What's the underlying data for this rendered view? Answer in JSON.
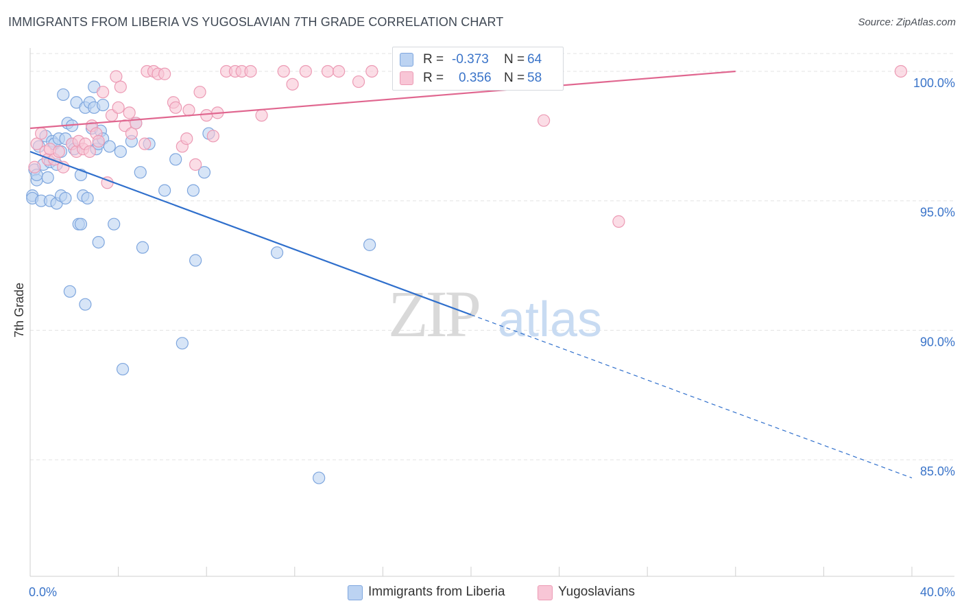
{
  "title": "IMMIGRANTS FROM LIBERIA VS YUGOSLAVIAN 7TH GRADE CORRELATION CHART",
  "source": "Source: ZipAtlas.com",
  "watermark": {
    "zip": "ZIP",
    "atlas": "atlas"
  },
  "legend": {
    "series": [
      {
        "r_label": "R =",
        "r_value": "-0.373",
        "n_label": "N =",
        "n_value": "64"
      },
      {
        "r_label": "R =",
        "r_value": "0.356",
        "n_label": "N =",
        "n_value": "58"
      }
    ]
  },
  "bottom_legend": [
    "Immigrants from Liberia",
    "Yugoslavians"
  ],
  "colors": {
    "blue_fill": "#bcd3f2",
    "blue_stroke": "#7ea6de",
    "blue_line": "#2f6fcc",
    "pink_fill": "#f8c6d6",
    "pink_stroke": "#ec9ab4",
    "pink_line": "#e0668f",
    "tick_label": "#3a74c9",
    "grid": "#e3e3e3"
  },
  "chart_data": {
    "type": "scatter",
    "title": "IMMIGRANTS FROM LIBERIA VS YUGOSLAVIAN 7TH GRADE CORRELATION CHART",
    "xlabel": "",
    "ylabel": "7th Grade",
    "xlim": [
      0,
      40
    ],
    "ylim": [
      80.5,
      100.9
    ],
    "x_tick_labels": [
      "0.0%",
      "40.0%"
    ],
    "y_ticks": [
      85,
      90,
      95,
      100
    ],
    "y_tick_labels": [
      "85.0%",
      "90.0%",
      "95.0%",
      "100.0%"
    ],
    "grid": true,
    "series": [
      {
        "name": "Immigrants from Liberia",
        "color": "#bcd3f2",
        "R": -0.373,
        "N": 64,
        "trend": {
          "x": [
            0,
            20
          ],
          "y": [
            96.9,
            90.6
          ],
          "dashed_x": [
            20,
            40
          ],
          "dashed_y": [
            90.6,
            84.3
          ]
        },
        "points": [
          [
            0.1,
            95.2
          ],
          [
            0.1,
            95.1
          ],
          [
            0.2,
            96.2
          ],
          [
            0.3,
            95.8
          ],
          [
            0.3,
            96.0
          ],
          [
            0.4,
            97.1
          ],
          [
            0.5,
            95.0
          ],
          [
            0.6,
            96.4
          ],
          [
            0.7,
            97.5
          ],
          [
            0.8,
            95.9
          ],
          [
            0.9,
            96.5
          ],
          [
            0.9,
            95.0
          ],
          [
            1.0,
            97.3
          ],
          [
            1.1,
            97.2
          ],
          [
            1.2,
            96.4
          ],
          [
            1.2,
            94.9
          ],
          [
            1.3,
            97.4
          ],
          [
            1.4,
            95.2
          ],
          [
            1.4,
            96.9
          ],
          [
            1.5,
            99.1
          ],
          [
            1.6,
            97.4
          ],
          [
            1.6,
            95.1
          ],
          [
            1.7,
            98.0
          ],
          [
            1.8,
            91.5
          ],
          [
            1.9,
            97.2
          ],
          [
            1.9,
            97.9
          ],
          [
            2.0,
            97.0
          ],
          [
            2.1,
            98.8
          ],
          [
            2.2,
            94.1
          ],
          [
            2.3,
            94.1
          ],
          [
            2.3,
            96.0
          ],
          [
            2.4,
            95.2
          ],
          [
            2.5,
            91.0
          ],
          [
            2.5,
            98.6
          ],
          [
            2.6,
            95.1
          ],
          [
            2.7,
            98.8
          ],
          [
            2.8,
            97.8
          ],
          [
            2.9,
            98.6
          ],
          [
            2.9,
            99.4
          ],
          [
            3.0,
            97.0
          ],
          [
            3.1,
            93.4
          ],
          [
            3.1,
            97.2
          ],
          [
            3.2,
            97.7
          ],
          [
            3.3,
            98.7
          ],
          [
            3.3,
            97.4
          ],
          [
            3.6,
            97.1
          ],
          [
            3.8,
            94.1
          ],
          [
            4.1,
            96.9
          ],
          [
            4.2,
            88.5
          ],
          [
            4.6,
            97.3
          ],
          [
            4.8,
            98.0
          ],
          [
            5.0,
            96.1
          ],
          [
            5.1,
            93.2
          ],
          [
            5.4,
            97.2
          ],
          [
            6.1,
            95.4
          ],
          [
            6.6,
            96.6
          ],
          [
            6.9,
            89.5
          ],
          [
            7.4,
            95.4
          ],
          [
            7.5,
            92.7
          ],
          [
            7.9,
            96.1
          ],
          [
            8.1,
            97.6
          ],
          [
            11.2,
            93.0
          ],
          [
            13.1,
            84.3
          ],
          [
            15.4,
            93.3
          ]
        ]
      },
      {
        "name": "Yugoslavians",
        "color": "#f8c6d6",
        "R": 0.356,
        "N": 58,
        "trend": {
          "x": [
            0,
            32
          ],
          "y": [
            97.8,
            100.0
          ]
        },
        "points": [
          [
            0.2,
            96.3
          ],
          [
            0.3,
            97.2
          ],
          [
            0.5,
            97.6
          ],
          [
            0.7,
            96.9
          ],
          [
            0.8,
            96.6
          ],
          [
            0.9,
            97.0
          ],
          [
            1.1,
            96.6
          ],
          [
            1.3,
            96.9
          ],
          [
            1.5,
            96.3
          ],
          [
            1.9,
            97.2
          ],
          [
            2.1,
            96.9
          ],
          [
            2.2,
            97.3
          ],
          [
            2.4,
            97.0
          ],
          [
            2.5,
            97.2
          ],
          [
            2.7,
            96.9
          ],
          [
            2.8,
            97.9
          ],
          [
            3.0,
            97.6
          ],
          [
            3.1,
            97.3
          ],
          [
            3.3,
            99.2
          ],
          [
            3.5,
            95.7
          ],
          [
            3.7,
            98.3
          ],
          [
            3.9,
            99.8
          ],
          [
            4.0,
            98.6
          ],
          [
            4.1,
            99.4
          ],
          [
            4.3,
            97.9
          ],
          [
            4.5,
            98.4
          ],
          [
            4.6,
            97.6
          ],
          [
            4.8,
            98.0
          ],
          [
            5.2,
            97.2
          ],
          [
            5.3,
            100.0
          ],
          [
            5.6,
            100.0
          ],
          [
            5.8,
            99.9
          ],
          [
            6.1,
            99.9
          ],
          [
            6.5,
            98.8
          ],
          [
            6.6,
            98.6
          ],
          [
            6.9,
            97.1
          ],
          [
            7.1,
            97.4
          ],
          [
            7.2,
            98.5
          ],
          [
            7.5,
            96.4
          ],
          [
            7.7,
            99.2
          ],
          [
            8.0,
            98.3
          ],
          [
            8.3,
            97.5
          ],
          [
            8.5,
            98.4
          ],
          [
            8.9,
            100.0
          ],
          [
            9.3,
            100.0
          ],
          [
            9.6,
            100.0
          ],
          [
            10.0,
            100.0
          ],
          [
            10.5,
            98.3
          ],
          [
            11.5,
            100.0
          ],
          [
            11.9,
            99.5
          ],
          [
            12.5,
            100.0
          ],
          [
            13.5,
            100.0
          ],
          [
            14.0,
            100.0
          ],
          [
            14.9,
            99.6
          ],
          [
            15.5,
            100.0
          ],
          [
            23.3,
            98.1
          ],
          [
            26.7,
            94.2
          ],
          [
            39.5,
            100.0
          ]
        ]
      }
    ]
  }
}
